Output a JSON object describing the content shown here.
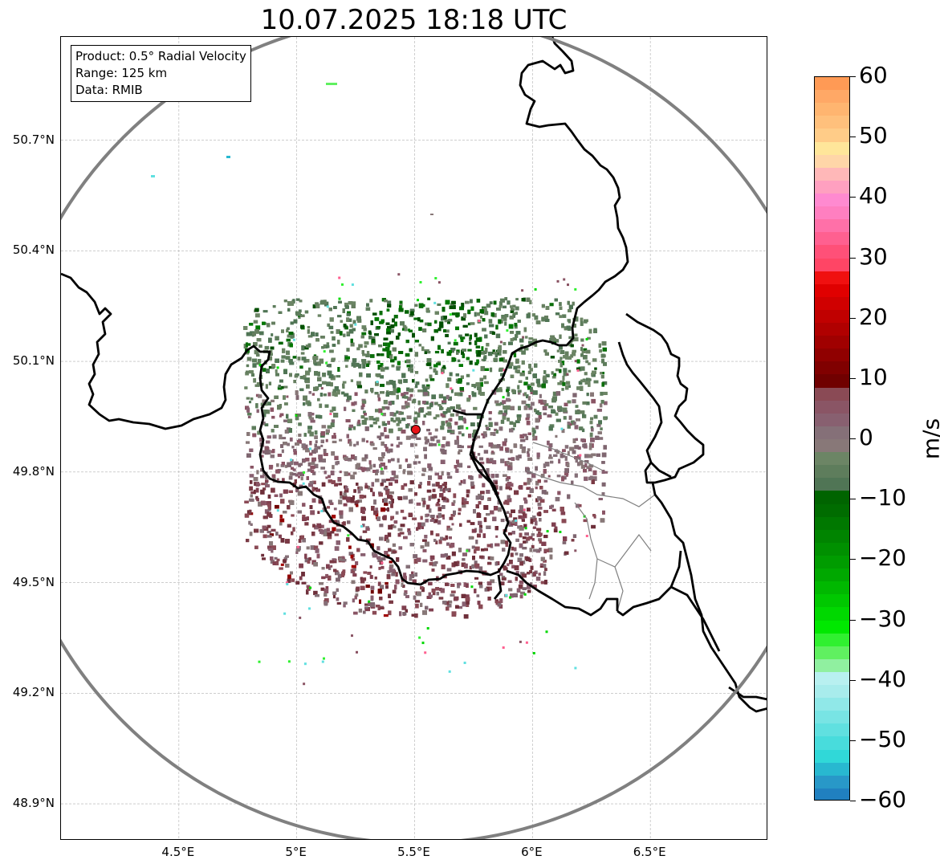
{
  "title": "10.07.2025 18:18 UTC",
  "info_box": {
    "product": "Product: 0.5° Radial Velocity",
    "range": "Range: 125 km",
    "data": "Data: RMIB"
  },
  "map": {
    "lat_ticks": [
      {
        "value": 50.7,
        "label": "50.7°N"
      },
      {
        "value": 50.4,
        "label": "50.4°N"
      },
      {
        "value": 50.1,
        "label": "50.1°N"
      },
      {
        "value": 49.8,
        "label": "49.8°N"
      },
      {
        "value": 49.5,
        "label": "49.5°N"
      },
      {
        "value": 49.2,
        "label": "49.2°N"
      },
      {
        "value": 48.9,
        "label": "48.9°N"
      }
    ],
    "lon_ticks": [
      {
        "value": 4.5,
        "label": "4.5°E"
      },
      {
        "value": 5.0,
        "label": "5°E"
      },
      {
        "value": 5.5,
        "label": "5.5°E"
      },
      {
        "value": 6.0,
        "label": "6°E"
      },
      {
        "value": 6.5,
        "label": "6.5°E"
      }
    ],
    "lon_range": [
      4.0,
      7.0
    ],
    "lat_range": [
      48.8,
      50.98
    ],
    "radar_site": {
      "lon": 5.505,
      "lat": 49.915,
      "color": "#e8141a"
    },
    "range_ring_km": 125,
    "ring_color": "#808080"
  },
  "colorbar": {
    "unit": "m/s",
    "vmin": -60,
    "vmax": 60,
    "ticks": [
      "60",
      "50",
      "40",
      "30",
      "20",
      "10",
      "0",
      "−10",
      "−20",
      "−30",
      "−40",
      "−50",
      "−60"
    ],
    "tick_values": [
      60,
      50,
      40,
      30,
      20,
      10,
      0,
      -10,
      -20,
      -30,
      -40,
      -50,
      -60
    ],
    "colors_top_to_bottom": [
      "#ff9a55",
      "#ffa866",
      "#ffb570",
      "#ffc07c",
      "#ffcc88",
      "#ffe69a",
      "#ffd6a8",
      "#ffb8b8",
      "#ffa0c0",
      "#ff8ad0",
      "#ff7fc0",
      "#ff70a8",
      "#ff6090",
      "#ff5078",
      "#ff4565",
      "#f01010",
      "#e00000",
      "#d00000",
      "#c00000",
      "#b00000",
      "#a00000",
      "#900000",
      "#800000",
      "#700000",
      "#8a4a55",
      "#8a5565",
      "#886070",
      "#857078",
      "#887878",
      "#6c8565",
      "#5e7d5c",
      "#507555",
      "#006400",
      "#006c00",
      "#007800",
      "#008400",
      "#009000",
      "#009c00",
      "#00a800",
      "#00b800",
      "#00c800",
      "#00d800",
      "#00e800",
      "#30f030",
      "#60f060",
      "#90f0a0",
      "#b8f0f0",
      "#a8ecec",
      "#90e8e8",
      "#78e4e4",
      "#60e0e0",
      "#48dcdc",
      "#30d8d8",
      "#28b8d0",
      "#2898c8",
      "#2080c0"
    ]
  }
}
